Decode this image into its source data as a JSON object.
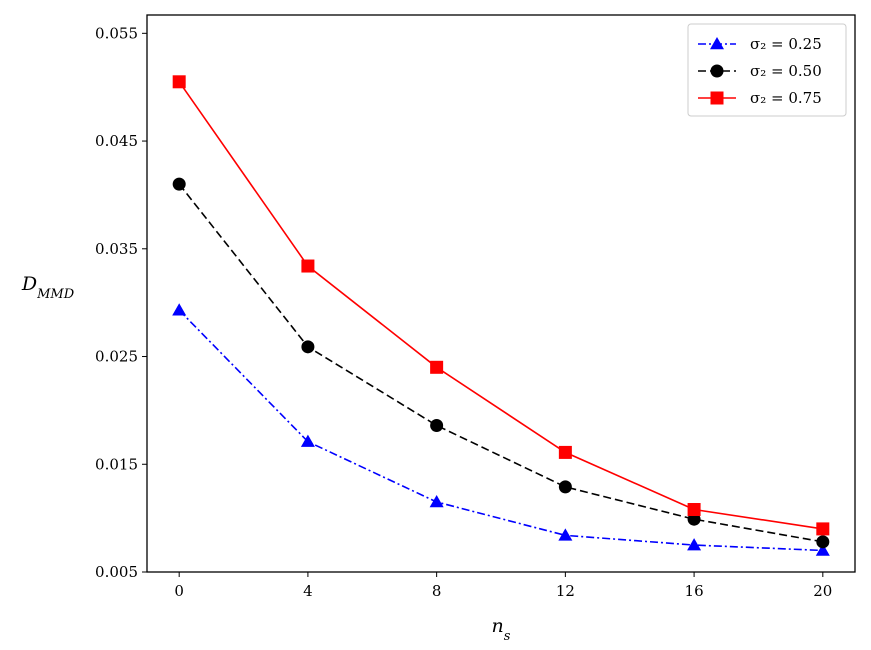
{
  "chart_data": {
    "type": "line",
    "title": "",
    "xlabel": "n_s",
    "ylabel": "D_MMD",
    "x": [
      0,
      4,
      8,
      12,
      16,
      20
    ],
    "xticks": [
      "0",
      "4",
      "8",
      "12",
      "16",
      "20"
    ],
    "yticks": [
      "0.005",
      "0.015",
      "0.025",
      "0.035",
      "0.045",
      "0.055"
    ],
    "xlim": [
      -1.0,
      21.0
    ],
    "ylim": [
      0.005,
      0.0567
    ],
    "grid": false,
    "legend_position": "top-right",
    "series": [
      {
        "name": "σ₂ = 0.25",
        "color": "#0000ff",
        "marker": "triangle",
        "linestyle": "dashdot",
        "values": [
          0.0293,
          0.0171,
          0.0115,
          0.0084,
          0.0075,
          0.007
        ]
      },
      {
        "name": "σ₂ = 0.50",
        "color": "#000000",
        "marker": "circle",
        "linestyle": "dashed",
        "values": [
          0.041,
          0.0259,
          0.0186,
          0.0129,
          0.0099,
          0.0078
        ]
      },
      {
        "name": "σ₂ = 0.75",
        "color": "#ff0000",
        "marker": "square",
        "linestyle": "solid",
        "values": [
          0.0505,
          0.0334,
          0.024,
          0.0161,
          0.0108,
          0.009
        ]
      }
    ]
  }
}
